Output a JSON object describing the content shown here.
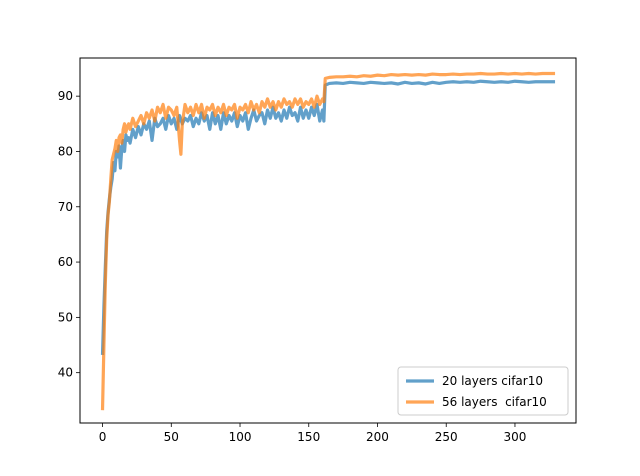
{
  "chart_data": {
    "type": "line",
    "title": "",
    "xlabel": "",
    "ylabel": "",
    "xlim": [
      -16.4,
      344.4
    ],
    "ylim": [
      30.9,
      96.9
    ],
    "xticks": [
      0,
      50,
      100,
      150,
      200,
      250,
      300
    ],
    "yticks": [
      40,
      50,
      60,
      70,
      80,
      90
    ],
    "grid": false,
    "legend_position": "lower right",
    "series": [
      {
        "name": "20 layers cifar10",
        "color": "#1f77b4",
        "points": [
          [
            0,
            43.5
          ],
          [
            1,
            52
          ],
          [
            2,
            59
          ],
          [
            3,
            65.5
          ],
          [
            4,
            69
          ],
          [
            5,
            71.5
          ],
          [
            6,
            73.5
          ],
          [
            7,
            75
          ],
          [
            8,
            78
          ],
          [
            9,
            76.5
          ],
          [
            10,
            80
          ],
          [
            11,
            79
          ],
          [
            12,
            81
          ],
          [
            13,
            77
          ],
          [
            14,
            80.5
          ],
          [
            15,
            82
          ],
          [
            16,
            80
          ],
          [
            17,
            83
          ],
          [
            18,
            82
          ],
          [
            19,
            82.5
          ],
          [
            20,
            81.5
          ],
          [
            22,
            84
          ],
          [
            24,
            82.5
          ],
          [
            26,
            84.5
          ],
          [
            28,
            83
          ],
          [
            30,
            85
          ],
          [
            32,
            84
          ],
          [
            34,
            85.5
          ],
          [
            36,
            82
          ],
          [
            38,
            86
          ],
          [
            40,
            84.5
          ],
          [
            42,
            85
          ],
          [
            44,
            86
          ],
          [
            46,
            84
          ],
          [
            48,
            86.5
          ],
          [
            50,
            85
          ],
          [
            52,
            86
          ],
          [
            54,
            84
          ],
          [
            56,
            86.5
          ],
          [
            58,
            85
          ],
          [
            60,
            86
          ],
          [
            62,
            85.5
          ],
          [
            64,
            86.5
          ],
          [
            66,
            84.5
          ],
          [
            68,
            86
          ],
          [
            70,
            85
          ],
          [
            72,
            87
          ],
          [
            74,
            85.5
          ],
          [
            76,
            86.5
          ],
          [
            78,
            84
          ],
          [
            80,
            87
          ],
          [
            82,
            85
          ],
          [
            84,
            86.5
          ],
          [
            86,
            84
          ],
          [
            88,
            87
          ],
          [
            90,
            85
          ],
          [
            92,
            86.5
          ],
          [
            94,
            85.5
          ],
          [
            96,
            87
          ],
          [
            98,
            84.5
          ],
          [
            100,
            86.5
          ],
          [
            102,
            85.5
          ],
          [
            104,
            87
          ],
          [
            106,
            84
          ],
          [
            108,
            86
          ],
          [
            110,
            87.5
          ],
          [
            112,
            85.5
          ],
          [
            114,
            86.5
          ],
          [
            116,
            87
          ],
          [
            118,
            85
          ],
          [
            120,
            87.5
          ],
          [
            122,
            86
          ],
          [
            124,
            88
          ],
          [
            126,
            86
          ],
          [
            128,
            87
          ],
          [
            130,
            85.5
          ],
          [
            132,
            87.5
          ],
          [
            134,
            86
          ],
          [
            136,
            88
          ],
          [
            138,
            86.5
          ],
          [
            140,
            87
          ],
          [
            142,
            85.5
          ],
          [
            144,
            88
          ],
          [
            146,
            86
          ],
          [
            148,
            87.5
          ],
          [
            150,
            86
          ],
          [
            152,
            88
          ],
          [
            154,
            86.5
          ],
          [
            156,
            88.5
          ],
          [
            158,
            85.5
          ],
          [
            160,
            87.5
          ],
          [
            161,
            85.5
          ],
          [
            162,
            92
          ],
          [
            165,
            92.3
          ],
          [
            170,
            92.4
          ],
          [
            175,
            92.3
          ],
          [
            180,
            92.5
          ],
          [
            185,
            92.4
          ],
          [
            190,
            92.3
          ],
          [
            195,
            92.5
          ],
          [
            200,
            92.4
          ],
          [
            205,
            92.3
          ],
          [
            210,
            92.4
          ],
          [
            215,
            92.2
          ],
          [
            220,
            92.5
          ],
          [
            225,
            92.3
          ],
          [
            230,
            92.4
          ],
          [
            235,
            92.2
          ],
          [
            240,
            92.5
          ],
          [
            245,
            92.3
          ],
          [
            250,
            92.5
          ],
          [
            255,
            92.6
          ],
          [
            260,
            92.5
          ],
          [
            265,
            92.6
          ],
          [
            270,
            92.5
          ],
          [
            275,
            92.7
          ],
          [
            280,
            92.6
          ],
          [
            285,
            92.5
          ],
          [
            290,
            92.6
          ],
          [
            295,
            92.5
          ],
          [
            300,
            92.7
          ],
          [
            305,
            92.6
          ],
          [
            310,
            92.5
          ],
          [
            315,
            92.6
          ],
          [
            320,
            92.6
          ],
          [
            325,
            92.6
          ],
          [
            328,
            92.6
          ]
        ]
      },
      {
        "name": "56 layers  cifar10",
        "color": "#ff7f0e",
        "points": [
          [
            0,
            33.5
          ],
          [
            1,
            45
          ],
          [
            2,
            56
          ],
          [
            3,
            64
          ],
          [
            4,
            68.5
          ],
          [
            5,
            71
          ],
          [
            6,
            75
          ],
          [
            7,
            78.5
          ],
          [
            8,
            79.5
          ],
          [
            9,
            80.5
          ],
          [
            10,
            82
          ],
          [
            11,
            80
          ],
          [
            12,
            82.5
          ],
          [
            13,
            83
          ],
          [
            14,
            81.5
          ],
          [
            15,
            84
          ],
          [
            16,
            85
          ],
          [
            17,
            83.5
          ],
          [
            18,
            84.5
          ],
          [
            19,
            85
          ],
          [
            20,
            84
          ],
          [
            22,
            86
          ],
          [
            24,
            84.5
          ],
          [
            26,
            85.5
          ],
          [
            28,
            86.5
          ],
          [
            30,
            85
          ],
          [
            32,
            87
          ],
          [
            34,
            86
          ],
          [
            36,
            87.5
          ],
          [
            38,
            85.5
          ],
          [
            40,
            88
          ],
          [
            42,
            87
          ],
          [
            44,
            88.5
          ],
          [
            46,
            86
          ],
          [
            48,
            88
          ],
          [
            50,
            87.5
          ],
          [
            52,
            86.5
          ],
          [
            54,
            88
          ],
          [
            56,
            82
          ],
          [
            57,
            79.5
          ],
          [
            58,
            85
          ],
          [
            60,
            88.5
          ],
          [
            62,
            87
          ],
          [
            64,
            88
          ],
          [
            66,
            86.5
          ],
          [
            68,
            88.5
          ],
          [
            70,
            87
          ],
          [
            72,
            88.5
          ],
          [
            74,
            86
          ],
          [
            76,
            88
          ],
          [
            78,
            87.5
          ],
          [
            80,
            88.5
          ],
          [
            82,
            86.5
          ],
          [
            84,
            88
          ],
          [
            86,
            87
          ],
          [
            88,
            88.5
          ],
          [
            90,
            86.5
          ],
          [
            92,
            88
          ],
          [
            94,
            87.5
          ],
          [
            96,
            88.5
          ],
          [
            98,
            86
          ],
          [
            100,
            88
          ],
          [
            102,
            87.5
          ],
          [
            104,
            88.5
          ],
          [
            106,
            87
          ],
          [
            108,
            89
          ],
          [
            110,
            87.5
          ],
          [
            112,
            88.5
          ],
          [
            114,
            87
          ],
          [
            116,
            89
          ],
          [
            118,
            88
          ],
          [
            120,
            89.5
          ],
          [
            122,
            88
          ],
          [
            124,
            89
          ],
          [
            126,
            87.5
          ],
          [
            128,
            89
          ],
          [
            130,
            88
          ],
          [
            132,
            89.5
          ],
          [
            134,
            88.5
          ],
          [
            136,
            89
          ],
          [
            138,
            88
          ],
          [
            140,
            89.5
          ],
          [
            142,
            88.5
          ],
          [
            144,
            89.5
          ],
          [
            146,
            88
          ],
          [
            148,
            89
          ],
          [
            150,
            88.5
          ],
          [
            152,
            89.5
          ],
          [
            154,
            88
          ],
          [
            156,
            90
          ],
          [
            158,
            88.5
          ],
          [
            160,
            89.5
          ],
          [
            161,
            89
          ],
          [
            162,
            93.2
          ],
          [
            165,
            93.4
          ],
          [
            170,
            93.5
          ],
          [
            175,
            93.5
          ],
          [
            180,
            93.6
          ],
          [
            185,
            93.5
          ],
          [
            190,
            93.7
          ],
          [
            195,
            93.6
          ],
          [
            200,
            93.8
          ],
          [
            205,
            93.7
          ],
          [
            210,
            93.9
          ],
          [
            215,
            93.8
          ],
          [
            220,
            93.9
          ],
          [
            225,
            93.8
          ],
          [
            230,
            93.9
          ],
          [
            235,
            93.8
          ],
          [
            240,
            94
          ],
          [
            245,
            93.9
          ],
          [
            250,
            93.9
          ],
          [
            255,
            94
          ],
          [
            260,
            93.9
          ],
          [
            265,
            94
          ],
          [
            270,
            94
          ],
          [
            275,
            94.1
          ],
          [
            280,
            94
          ],
          [
            285,
            94
          ],
          [
            290,
            94.1
          ],
          [
            295,
            94
          ],
          [
            300,
            94.1
          ],
          [
            305,
            94
          ],
          [
            310,
            94.1
          ],
          [
            315,
            94
          ],
          [
            320,
            94.1
          ],
          [
            325,
            94.1
          ],
          [
            328,
            94.1
          ]
        ]
      }
    ]
  }
}
